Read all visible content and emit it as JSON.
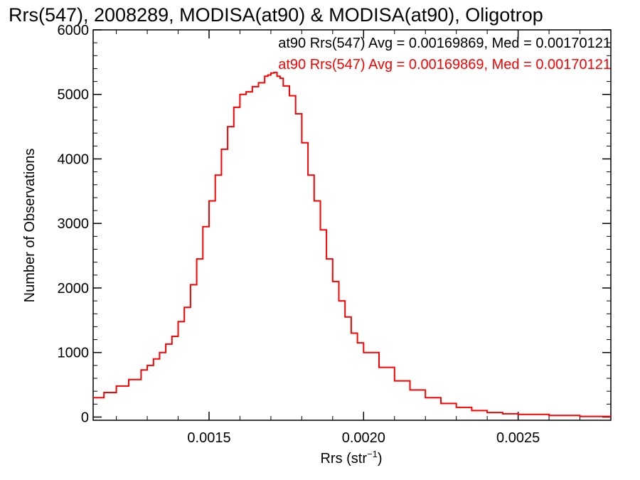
{
  "chart_data": {
    "type": "line",
    "title": "Rrs(547), 2008289, MODISA(at90) & MODISA(at90), Oligotrop",
    "xlabel_prefix": "Rrs (str",
    "xlabel_sup": "−1",
    "xlabel_suffix": ")",
    "ylabel": "Number of Observations",
    "xlim": [
      0.001125,
      0.0028
    ],
    "ylim": [
      -50,
      6000
    ],
    "xticks": [
      0.0015,
      0.002,
      0.0025
    ],
    "xtick_labels": [
      "0.0015",
      "0.0020",
      "0.0025"
    ],
    "yticks": [
      0,
      1000,
      2000,
      3000,
      4000,
      5000,
      6000
    ],
    "ytick_labels": [
      "0",
      "1000",
      "2000",
      "3000",
      "4000",
      "5000",
      "6000"
    ],
    "annotations": [
      {
        "text": "at90 Rrs(547) Avg = 0.00169869, Med = 0.00170121",
        "color": "#000000"
      },
      {
        "text": "at90 Rrs(547) Avg = 0.00169869, Med = 0.00170121",
        "color": "#ff0000"
      }
    ],
    "series": [
      {
        "color": "#ff0000",
        "x": [
          0.001125,
          0.00116,
          0.0012,
          0.00124,
          0.00128,
          0.0013,
          0.00132,
          0.00134,
          0.00136,
          0.00138,
          0.0014,
          0.00142,
          0.00144,
          0.00146,
          0.00148,
          0.0015,
          0.00152,
          0.00154,
          0.00156,
          0.00158,
          0.0016,
          0.00162,
          0.00164,
          0.00166,
          0.00168,
          0.00169,
          0.0017,
          0.00171,
          0.00172,
          0.00173,
          0.00174,
          0.00176,
          0.00178,
          0.0018,
          0.00182,
          0.00184,
          0.00186,
          0.00188,
          0.0019,
          0.00192,
          0.00194,
          0.00196,
          0.00198,
          0.002,
          0.00205,
          0.0021,
          0.00215,
          0.0022,
          0.00225,
          0.0023,
          0.00235,
          0.0024,
          0.00245,
          0.0025,
          0.0026,
          0.0027,
          0.0028
        ],
        "y": [
          300,
          380,
          480,
          580,
          730,
          800,
          900,
          1000,
          1130,
          1250,
          1480,
          1700,
          2050,
          2450,
          2950,
          3350,
          3750,
          4150,
          4500,
          4800,
          5000,
          5040,
          5120,
          5180,
          5280,
          5300,
          5330,
          5340,
          5280,
          5250,
          5130,
          4980,
          4700,
          4250,
          3750,
          3350,
          2900,
          2450,
          2100,
          1800,
          1550,
          1300,
          1150,
          1000,
          770,
          560,
          420,
          300,
          210,
          150,
          100,
          70,
          50,
          40,
          25,
          10,
          5
        ]
      }
    ]
  }
}
